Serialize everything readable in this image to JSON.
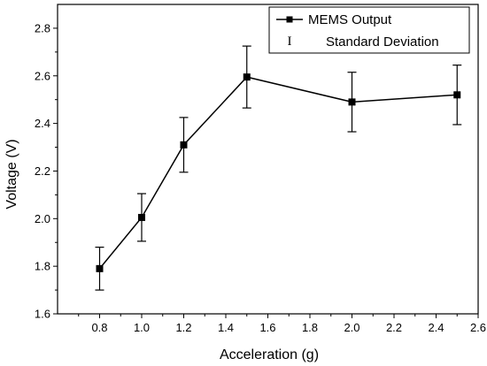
{
  "chart_data": {
    "type": "line",
    "title": "",
    "xlabel": "Acceleration (g)",
    "ylabel": "Voltage (V)",
    "xlim": [
      0.6,
      2.6
    ],
    "ylim": [
      1.6,
      2.9
    ],
    "xticks": [
      0.8,
      1.0,
      1.2,
      1.4,
      1.6,
      1.8,
      2.0,
      2.2,
      2.4,
      2.6
    ],
    "yticks": [
      1.6,
      1.8,
      2.0,
      2.2,
      2.4,
      2.6,
      2.8
    ],
    "xtick_labels": [
      "0.8",
      "1.0",
      "1.2",
      "1.4",
      "1.6",
      "1.8",
      "2.0",
      "2.2",
      "2.4",
      "2.6"
    ],
    "ytick_labels": [
      "1.6",
      "1.8",
      "2.0",
      "2.2",
      "2.4",
      "2.6",
      "2.8"
    ],
    "grid": false,
    "legend_position": "top-right",
    "series": [
      {
        "name": "MEMS Output",
        "marker": "square",
        "color": "#000000",
        "x": [
          0.8,
          1.0,
          1.2,
          1.5,
          2.0,
          2.5
        ],
        "y": [
          1.79,
          2.005,
          2.31,
          2.595,
          2.49,
          2.52
        ],
        "error": [
          0.09,
          0.1,
          0.115,
          0.13,
          0.125,
          0.125
        ]
      }
    ],
    "legend": {
      "line_label": "MEMS Output",
      "error_symbol": "I",
      "error_label": "Standard Deviation"
    }
  }
}
